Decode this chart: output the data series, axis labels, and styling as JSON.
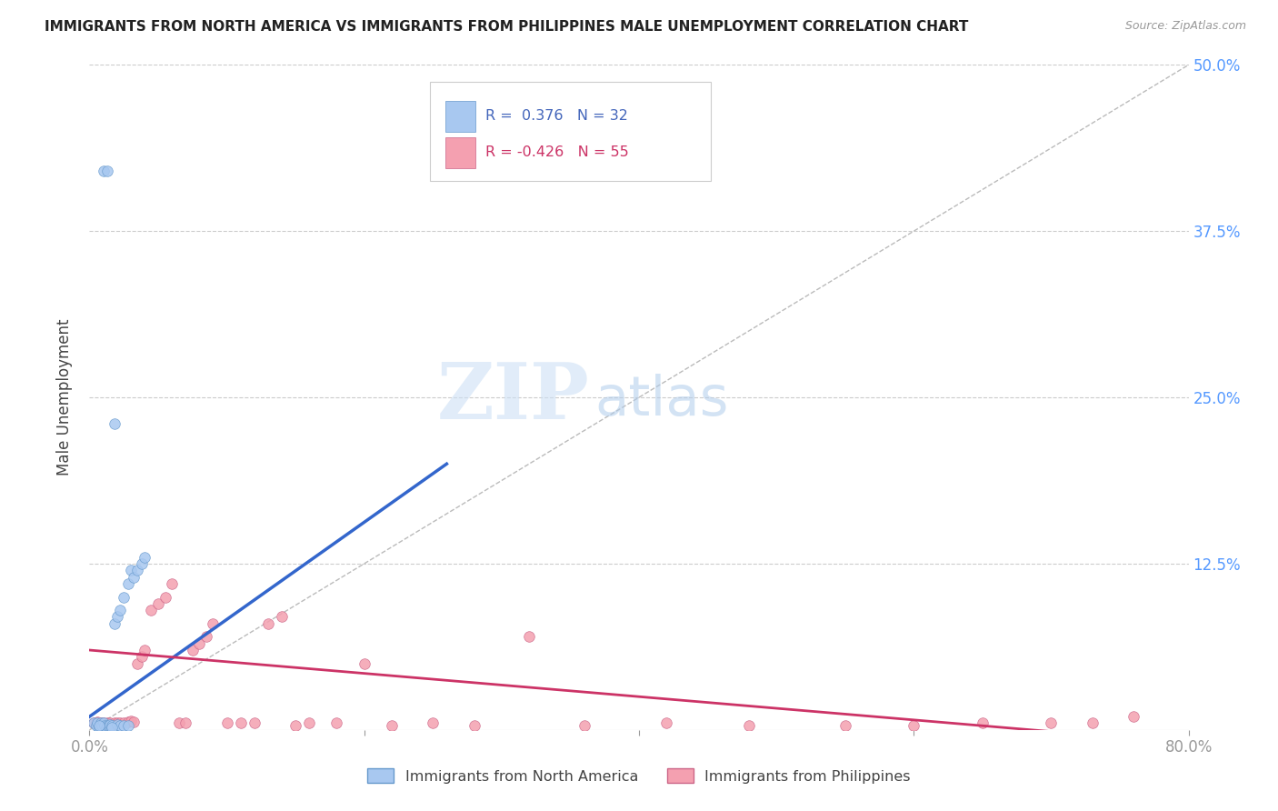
{
  "title": "IMMIGRANTS FROM NORTH AMERICA VS IMMIGRANTS FROM PHILIPPINES MALE UNEMPLOYMENT CORRELATION CHART",
  "source": "Source: ZipAtlas.com",
  "ylabel": "Male Unemployment",
  "xlim": [
    0.0,
    0.8
  ],
  "ylim": [
    0.0,
    0.5
  ],
  "yticks": [
    0.0,
    0.125,
    0.25,
    0.375,
    0.5
  ],
  "ytick_labels": [
    "",
    "12.5%",
    "25.0%",
    "37.5%",
    "50.0%"
  ],
  "xticks": [
    0.0,
    0.2,
    0.4,
    0.6,
    0.8
  ],
  "xtick_labels": [
    "0.0%",
    "",
    "",
    "",
    "80.0%"
  ],
  "legend_entries": [
    {
      "label": "Immigrants from North America",
      "color": "#a8c8f0",
      "edge": "#6699cc",
      "R": "0.376",
      "N": "32",
      "text_color": "#4466bb"
    },
    {
      "label": "Immigrants from Philippines",
      "color": "#f4a0b0",
      "edge": "#cc6688",
      "R": "-0.426",
      "N": "55",
      "text_color": "#cc3366"
    }
  ],
  "blue_scatter_x": [
    0.003,
    0.005,
    0.006,
    0.007,
    0.008,
    0.009,
    0.01,
    0.011,
    0.012,
    0.013,
    0.014,
    0.015,
    0.016,
    0.018,
    0.02,
    0.022,
    0.025,
    0.028,
    0.03,
    0.032,
    0.035,
    0.038,
    0.04,
    0.018,
    0.02,
    0.022,
    0.025,
    0.028,
    0.007,
    0.01,
    0.013,
    0.016
  ],
  "blue_scatter_y": [
    0.005,
    0.003,
    0.005,
    0.002,
    0.005,
    0.003,
    0.005,
    0.003,
    0.002,
    0.003,
    0.003,
    0.004,
    0.003,
    0.08,
    0.085,
    0.09,
    0.1,
    0.11,
    0.12,
    0.115,
    0.12,
    0.125,
    0.13,
    0.23,
    0.004,
    0.003,
    0.003,
    0.003,
    0.003,
    0.42,
    0.42,
    0.002
  ],
  "pink_scatter_x": [
    0.003,
    0.005,
    0.006,
    0.007,
    0.008,
    0.009,
    0.01,
    0.011,
    0.012,
    0.013,
    0.014,
    0.015,
    0.016,
    0.018,
    0.02,
    0.022,
    0.025,
    0.028,
    0.03,
    0.032,
    0.035,
    0.038,
    0.04,
    0.045,
    0.05,
    0.055,
    0.06,
    0.065,
    0.07,
    0.075,
    0.08,
    0.085,
    0.09,
    0.1,
    0.11,
    0.12,
    0.13,
    0.14,
    0.15,
    0.16,
    0.18,
    0.2,
    0.22,
    0.25,
    0.28,
    0.32,
    0.36,
    0.42,
    0.48,
    0.55,
    0.6,
    0.65,
    0.7,
    0.73,
    0.76
  ],
  "pink_scatter_y": [
    0.005,
    0.005,
    0.006,
    0.004,
    0.005,
    0.003,
    0.005,
    0.004,
    0.003,
    0.005,
    0.003,
    0.005,
    0.004,
    0.005,
    0.005,
    0.005,
    0.005,
    0.006,
    0.007,
    0.006,
    0.05,
    0.055,
    0.06,
    0.09,
    0.095,
    0.1,
    0.11,
    0.005,
    0.005,
    0.06,
    0.065,
    0.07,
    0.08,
    0.005,
    0.005,
    0.005,
    0.08,
    0.085,
    0.003,
    0.005,
    0.005,
    0.05,
    0.003,
    0.005,
    0.003,
    0.07,
    0.003,
    0.005,
    0.003,
    0.003,
    0.003,
    0.005,
    0.005,
    0.005,
    0.01
  ],
  "blue_line_x": [
    0.0,
    0.26
  ],
  "blue_line_y": [
    0.01,
    0.2
  ],
  "pink_line_x": [
    0.0,
    0.8
  ],
  "pink_line_y": [
    0.06,
    -0.01
  ],
  "ref_line_x": [
    0.0,
    0.8
  ],
  "ref_line_y": [
    0.0,
    0.5
  ],
  "watermark_zip": "ZIP",
  "watermark_atlas": "atlas",
  "bg_color": "#ffffff",
  "grid_color": "#cccccc",
  "blue_color": "#a8c8f0",
  "blue_edge_color": "#6699cc",
  "pink_color": "#f4a0b0",
  "pink_edge_color": "#cc6688",
  "blue_line_color": "#3366cc",
  "pink_line_color": "#cc3366",
  "ref_line_color": "#bbbbbb",
  "axis_color": "#5599ff",
  "title_color": "#222222",
  "marker_size": 70
}
